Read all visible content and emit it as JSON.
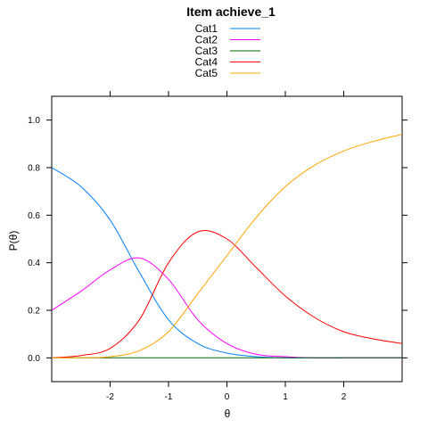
{
  "chart_data": {
    "type": "line",
    "title": "Item achieve_1",
    "xlabel": "θ",
    "ylabel": "P(θ)",
    "xlim": [
      -3,
      3
    ],
    "ylim": [
      -0.1,
      1.1
    ],
    "x_ticks": [
      -2,
      -1,
      0,
      1,
      2
    ],
    "y_ticks": [
      0.0,
      0.2,
      0.4,
      0.6,
      0.8,
      1.0
    ],
    "y_tick_labels": [
      "0.0",
      "0.2",
      "0.4",
      "0.6",
      "0.8",
      "1.0"
    ],
    "legend_placement": "top-center",
    "grid": false,
    "x": [
      -3.0,
      -2.5,
      -2.0,
      -1.5,
      -1.0,
      -0.5,
      0.0,
      0.5,
      1.0,
      1.5,
      2.0,
      2.5,
      3.0
    ],
    "series": [
      {
        "name": "Cat1",
        "color": "#0080ff",
        "values": [
          0.8,
          0.72,
          0.58,
          0.36,
          0.16,
          0.06,
          0.02,
          0.005,
          0.0,
          0.0,
          0.0,
          0.0,
          0.0
        ]
      },
      {
        "name": "Cat2",
        "color": "#ff00ff",
        "values": [
          0.2,
          0.28,
          0.37,
          0.42,
          0.33,
          0.16,
          0.06,
          0.015,
          0.005,
          0.0,
          0.0,
          0.0,
          0.0
        ]
      },
      {
        "name": "Cat3",
        "color": "#006400",
        "values": [
          0.0,
          0.0,
          0.0,
          0.0,
          0.0,
          0.0,
          0.0,
          0.0,
          0.0,
          0.0,
          0.0,
          0.0,
          0.0
        ]
      },
      {
        "name": "Cat4",
        "color": "#ff0000",
        "values": [
          0.0,
          0.01,
          0.04,
          0.16,
          0.4,
          0.53,
          0.5,
          0.38,
          0.26,
          0.17,
          0.11,
          0.08,
          0.06
        ]
      },
      {
        "name": "Cat5",
        "color": "#ffa500",
        "values": [
          0.0,
          0.0,
          0.005,
          0.03,
          0.11,
          0.27,
          0.43,
          0.59,
          0.72,
          0.81,
          0.87,
          0.91,
          0.94
        ]
      }
    ]
  }
}
